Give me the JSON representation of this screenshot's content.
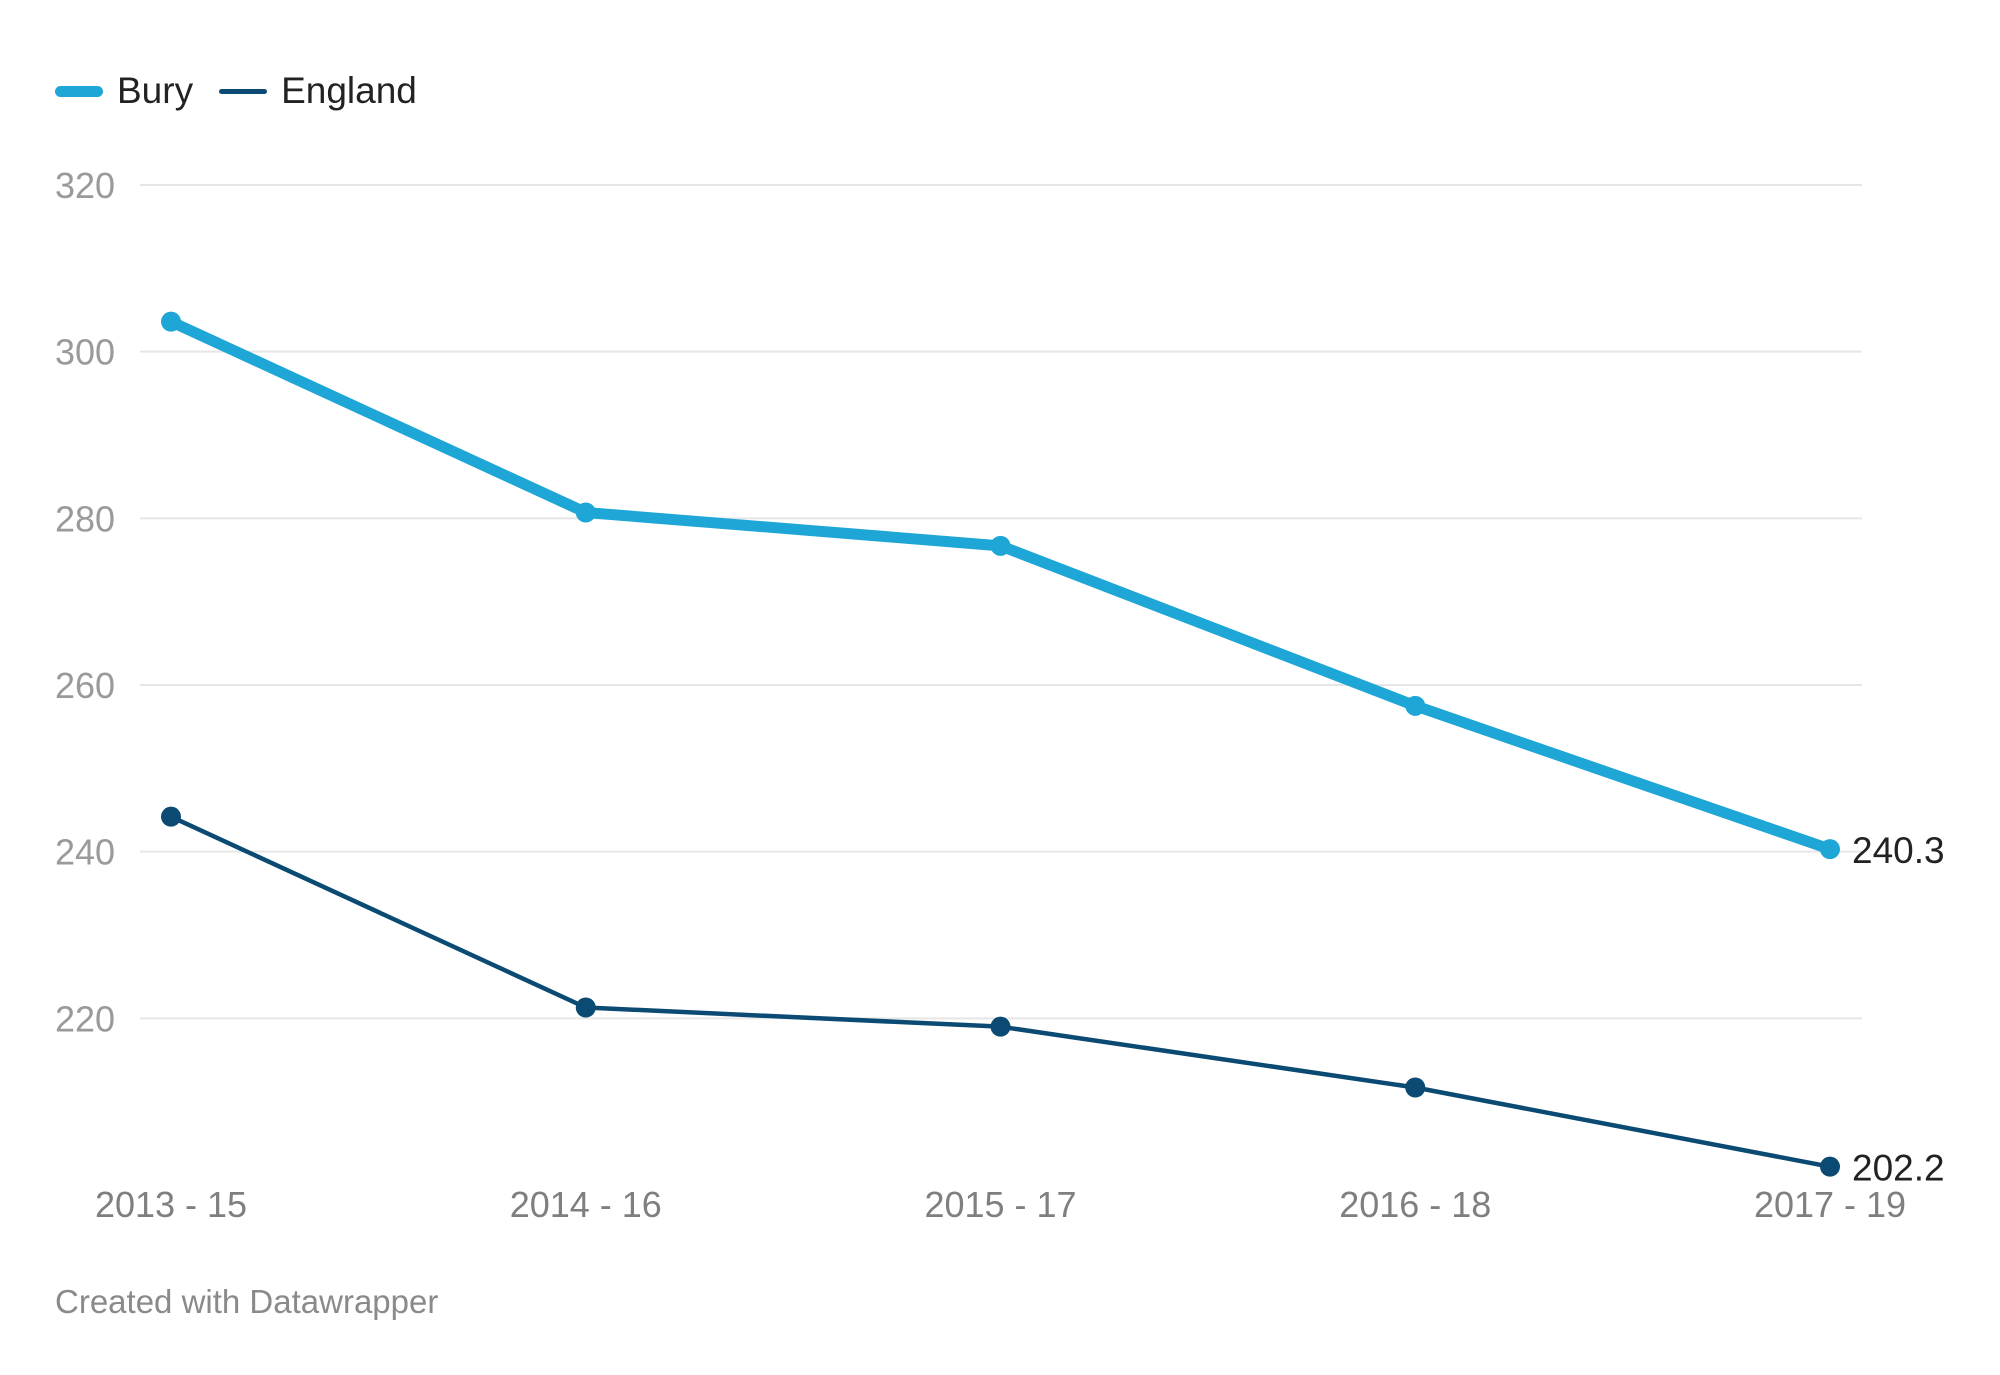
{
  "chart_data": {
    "type": "line",
    "title": "",
    "xlabel": "",
    "ylabel": "",
    "categories": [
      "2013 - 15",
      "2014 - 16",
      "2015 - 17",
      "2016 - 18",
      "2017 - 19"
    ],
    "series": [
      {
        "name": "Bury",
        "values": [
          303.6,
          280.7,
          276.7,
          257.5,
          240.3
        ],
        "color": "#1ea6d6",
        "end_label": "240.3"
      },
      {
        "name": "England",
        "values": [
          244.2,
          221.3,
          219.0,
          211.7,
          202.2
        ],
        "color": "#0b4a72",
        "end_label": "202.2"
      }
    ],
    "ylim": [
      200,
      320
    ],
    "yticks": [
      220,
      240,
      260,
      280,
      300,
      320
    ],
    "ytick_labels": [
      "220",
      "240",
      "260",
      "280",
      "300",
      "320"
    ],
    "grid": true,
    "legend_position": "top-left"
  },
  "footer": {
    "credit": "Created with Datawrapper"
  },
  "colors": {
    "grid": "#e6e6e6",
    "axis_text": "#9a9a9a",
    "x_text": "#7f7f7f",
    "label_text": "#222222"
  }
}
